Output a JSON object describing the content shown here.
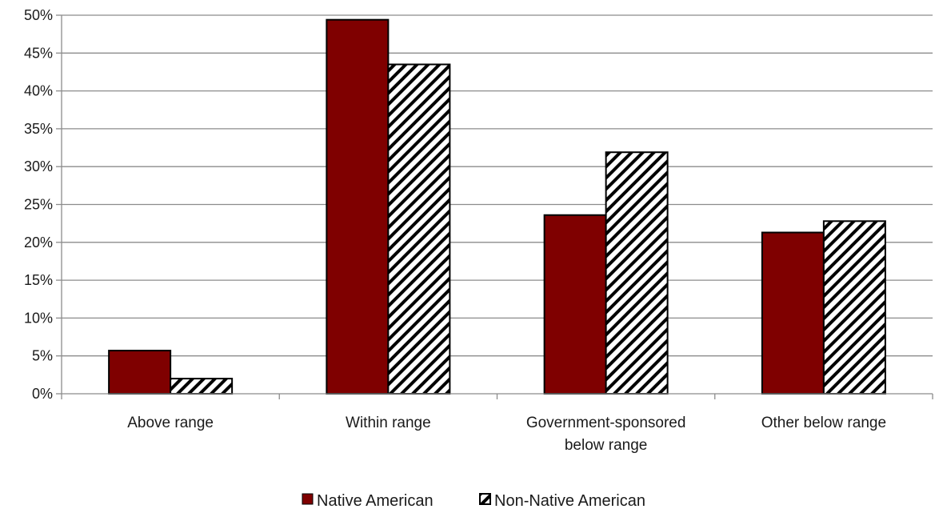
{
  "chart_data": {
    "type": "bar",
    "categories": [
      [
        "Above range"
      ],
      [
        "Within range"
      ],
      [
        "Government-sponsored",
        "below range"
      ],
      [
        "Other below range"
      ]
    ],
    "series": [
      {
        "name": "Native American",
        "values": [
          5.7,
          49.4,
          23.6,
          21.3
        ],
        "color": "#7f0000",
        "pattern": "solid"
      },
      {
        "name": "Non-Native American",
        "values": [
          2.0,
          43.5,
          31.9,
          22.8
        ],
        "color": "#ffffff",
        "pattern": "diagonal-hatch"
      }
    ],
    "ylim": [
      0,
      50
    ],
    "yticks": [
      "0%",
      "5%",
      "10%",
      "15%",
      "20%",
      "25%",
      "30%",
      "35%",
      "40%",
      "45%",
      "50%"
    ],
    "grid": true,
    "legend_position": "bottom"
  }
}
